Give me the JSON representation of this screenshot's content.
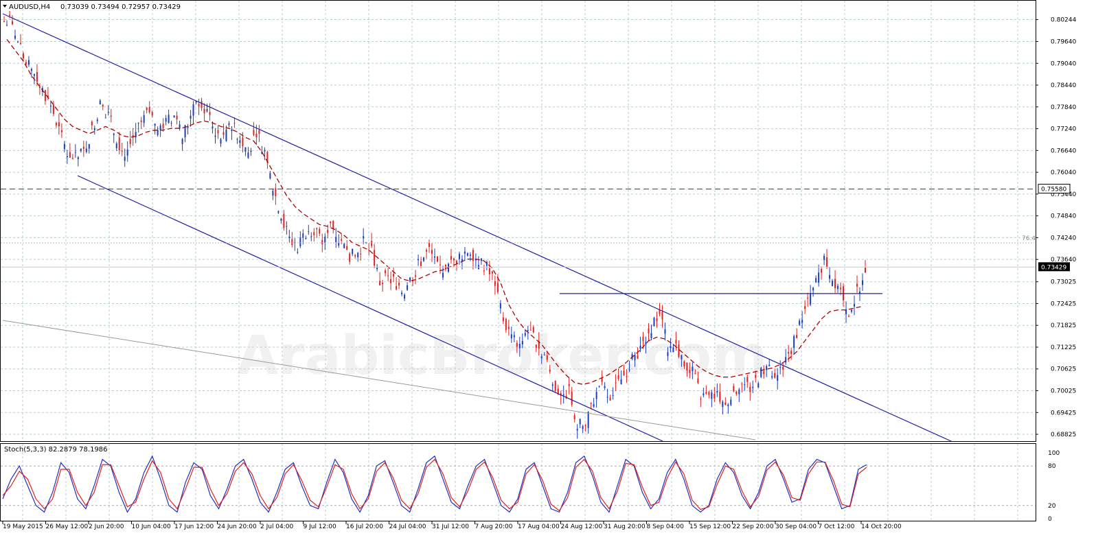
{
  "header": {
    "symbol": "AUDUSD,H4",
    "ohlc": "0.73039 0.73494 0.72957 0.73429"
  },
  "indicator_header": "Stoch(5,3,3) 82.2879 78.1986",
  "watermark": "ArabicBroker.com",
  "fib_label": "76.4",
  "colors": {
    "bull_candle": "#1a3dbf",
    "bear_candle": "#e02020",
    "ma_line": "#b00000",
    "trendline": "#1f1fa0",
    "stoch_main": "#1f2fc0",
    "stoch_signal": "#e02020",
    "grid": "#a9d3d9",
    "current_price_bg": "#000000"
  },
  "chart_data": [
    {
      "type": "candlestick",
      "title": "AUDUSD,H4",
      "ylim": [
        0.6875,
        0.805
      ],
      "y_ticks": [
        "0.80244",
        "0.79640",
        "0.79040",
        "0.78440",
        "0.77840",
        "0.77240",
        "0.76640",
        "0.76040",
        "0.75440",
        "0.74840",
        "0.74240",
        "0.73640",
        "0.73025",
        "0.72425",
        "0.71825",
        "0.71225",
        "0.70625",
        "0.70025",
        "0.69425",
        "0.68825"
      ],
      "x_ticks": [
        "19 May 2015",
        "26 May 12:00",
        "2 Jun 20:00",
        "10 Jun 04:00",
        "17 Jun 12:00",
        "24 Jun 20:00",
        "2 Jul 04:00",
        "9 Jul 12:00",
        "16 Jul 20:00",
        "24 Jul 04:00",
        "31 Jul 12:00",
        "7 Aug 20:00",
        "17 Aug 04:00",
        "24 Aug 12:00",
        "31 Aug 20:00",
        "8 Sep 04:00",
        "15 Sep 12:00",
        "22 Sep 20:00",
        "30 Sep 04:00",
        "7 Oct 12:00",
        "14 Oct 20:00"
      ],
      "current_price": "0.73429",
      "marked_level": "0.75580",
      "close_path": [
        0.802,
        0.796,
        0.79,
        0.788,
        0.783,
        0.779,
        0.772,
        0.766,
        0.764,
        0.766,
        0.772,
        0.779,
        0.776,
        0.77,
        0.765,
        0.77,
        0.774,
        0.777,
        0.772,
        0.774,
        0.776,
        0.77,
        0.776,
        0.78,
        0.777,
        0.772,
        0.769,
        0.774,
        0.77,
        0.766,
        0.772,
        0.766,
        0.756,
        0.749,
        0.742,
        0.74,
        0.744,
        0.745,
        0.741,
        0.747,
        0.742,
        0.738,
        0.737,
        0.741,
        0.739,
        0.73,
        0.731,
        0.73,
        0.728,
        0.732,
        0.736,
        0.739,
        0.735,
        0.733,
        0.736,
        0.738,
        0.739,
        0.736,
        0.734,
        0.73,
        0.72,
        0.715,
        0.713,
        0.717,
        0.714,
        0.71,
        0.703,
        0.699,
        0.7,
        0.691,
        0.69,
        0.698,
        0.701,
        0.699,
        0.702,
        0.706,
        0.71,
        0.713,
        0.718,
        0.722,
        0.712,
        0.713,
        0.708,
        0.705,
        0.699,
        0.698,
        0.7,
        0.696,
        0.7,
        0.702,
        0.701,
        0.704,
        0.707,
        0.703,
        0.708,
        0.712,
        0.719,
        0.724,
        0.73,
        0.737,
        0.731,
        0.729,
        0.722,
        0.727,
        0.7343
      ],
      "moving_average_path": [
        0.797,
        0.794,
        0.791,
        0.787,
        0.784,
        0.781,
        0.778,
        0.775,
        0.773,
        0.772,
        0.771,
        0.772,
        0.773,
        0.772,
        0.7705,
        0.77,
        0.7705,
        0.7715,
        0.772,
        0.772,
        0.7725,
        0.7725,
        0.773,
        0.774,
        0.7745,
        0.774,
        0.773,
        0.7725,
        0.7715,
        0.77,
        0.769,
        0.766,
        0.762,
        0.758,
        0.754,
        0.751,
        0.749,
        0.7475,
        0.746,
        0.7455,
        0.7445,
        0.743,
        0.741,
        0.74,
        0.739,
        0.737,
        0.735,
        0.733,
        0.731,
        0.7305,
        0.731,
        0.732,
        0.733,
        0.7335,
        0.7345,
        0.7355,
        0.7365,
        0.7365,
        0.736,
        0.734,
        0.73,
        0.724,
        0.72,
        0.717,
        0.715,
        0.713,
        0.71,
        0.707,
        0.7045,
        0.7025,
        0.702,
        0.7025,
        0.7035,
        0.7045,
        0.706,
        0.7075,
        0.7095,
        0.7115,
        0.714,
        0.715,
        0.7145,
        0.713,
        0.711,
        0.709,
        0.707,
        0.7055,
        0.7045,
        0.704,
        0.704,
        0.7045,
        0.705,
        0.7055,
        0.706,
        0.7065,
        0.7075,
        0.709,
        0.711,
        0.714,
        0.717,
        0.72,
        0.722,
        0.7225,
        0.7225,
        0.723,
        0.7235
      ],
      "channel_upper": [
        [
          0.802,
          0.688
        ]
      ],
      "horizontal_resistance": 0.727
    },
    {
      "type": "line",
      "title": "Stoch(5,3,3) 82.2879 78.1986",
      "ylim": [
        0,
        100
      ],
      "y_ticks": [
        "100",
        "80",
        "20",
        "0"
      ],
      "series": [
        {
          "values": [
            30,
            60,
            80,
            50,
            20,
            10,
            40,
            85,
            70,
            30,
            15,
            50,
            90,
            80,
            40,
            10,
            30,
            70,
            95,
            60,
            20,
            10,
            55,
            85,
            75,
            35,
            15,
            45,
            80,
            90,
            60,
            25,
            10,
            40,
            75,
            85,
            50,
            20,
            15,
            55,
            90,
            70,
            30,
            10,
            35,
            80,
            88,
            55,
            20,
            10,
            45,
            85,
            95,
            60,
            25,
            15,
            50,
            80,
            90,
            55,
            20,
            10,
            30,
            75,
            85,
            50,
            15,
            10,
            40,
            85,
            95,
            65,
            25,
            10,
            50,
            90,
            80,
            40,
            15,
            30,
            70,
            90,
            60,
            20,
            10,
            20,
            60,
            85,
            70,
            35,
            15,
            40,
            80,
            90,
            60,
            25,
            30,
            75,
            90,
            85,
            50,
            15,
            20,
            75,
            82
          ]
        },
        {
          "values": [
            35,
            50,
            72,
            60,
            30,
            15,
            30,
            75,
            75,
            40,
            20,
            40,
            82,
            82,
            50,
            18,
            25,
            60,
            88,
            70,
            30,
            15,
            45,
            78,
            78,
            45,
            20,
            38,
            72,
            85,
            68,
            35,
            15,
            32,
            68,
            82,
            58,
            28,
            18,
            48,
            82,
            75,
            38,
            15,
            30,
            72,
            85,
            62,
            28,
            15,
            38,
            78,
            90,
            68,
            32,
            18,
            42,
            75,
            86,
            62,
            28,
            15,
            25,
            68,
            82,
            58,
            22,
            12,
            32,
            78,
            90,
            72,
            32,
            15,
            42,
            84,
            82,
            48,
            20,
            25,
            62,
            86,
            68,
            28,
            14,
            18,
            52,
            80,
            75,
            42,
            18,
            34,
            74,
            86,
            66,
            32,
            28,
            68,
            86,
            86,
            58,
            22,
            18,
            68,
            78
          ]
        }
      ]
    }
  ]
}
